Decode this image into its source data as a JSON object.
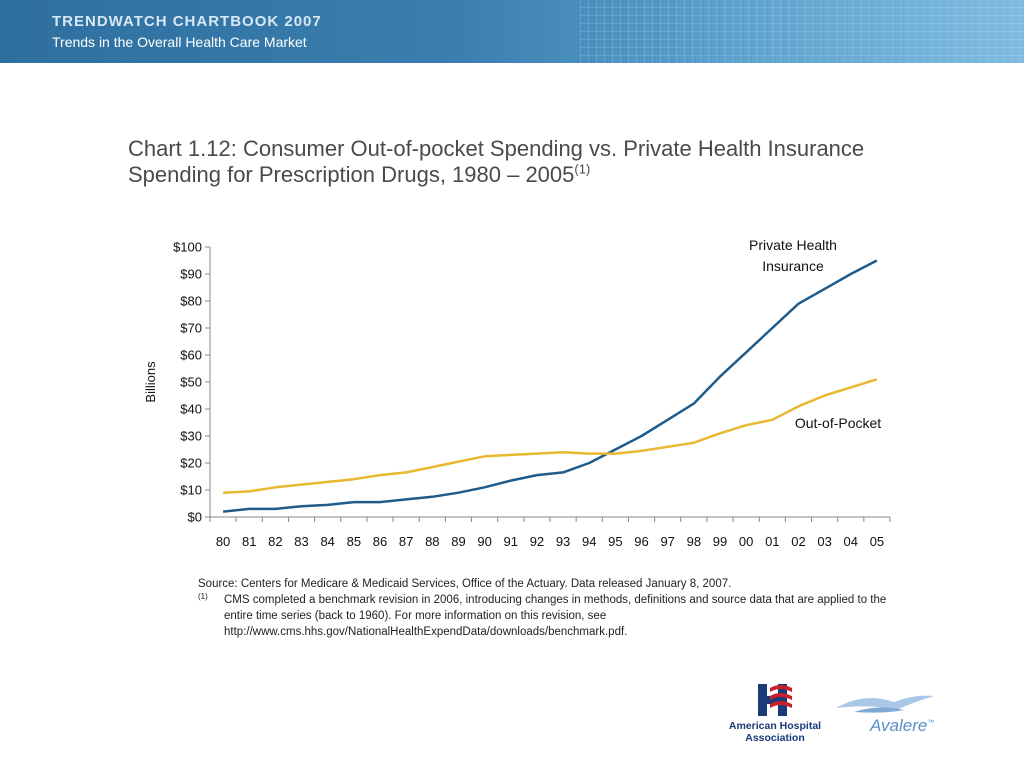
{
  "header": {
    "title": "TRENDWATCH CHARTBOOK 2007",
    "subtitle": "Trends in the Overall Health Care Market"
  },
  "title": {
    "text": "Chart 1.12: Consumer Out-of-pocket Spending vs. Private Health Insurance Spending for Prescription Drugs, 1980 – 2005",
    "superscript": "(1)"
  },
  "chart_data": {
    "type": "line",
    "ylabel": "Billions",
    "xlabel": "",
    "ylim": [
      0,
      100
    ],
    "yticks": [
      "$0",
      "$10",
      "$20",
      "$30",
      "$40",
      "$50",
      "$60",
      "$70",
      "$80",
      "$90",
      "$100"
    ],
    "categories": [
      "80",
      "81",
      "82",
      "83",
      "84",
      "85",
      "86",
      "87",
      "88",
      "89",
      "90",
      "91",
      "92",
      "93",
      "94",
      "95",
      "96",
      "97",
      "98",
      "99",
      "00",
      "01",
      "02",
      "03",
      "04",
      "05"
    ],
    "series": [
      {
        "name": "Private Health Insurance",
        "color": "#1f5c8b",
        "values": [
          2,
          3,
          3,
          4,
          4.5,
          5.5,
          5.5,
          6.5,
          7.5,
          9,
          11,
          13.5,
          15.5,
          16.5,
          20,
          25,
          30,
          36,
          42,
          52,
          61,
          70,
          79,
          84.5,
          90,
          95
        ]
      },
      {
        "name": "Out-of-Pocket",
        "color": "#e8b830",
        "values": [
          9,
          9.5,
          11,
          12,
          13,
          14,
          15.5,
          16.5,
          18.5,
          20.5,
          22.5,
          23,
          23.5,
          24,
          23.5,
          23.5,
          24.5,
          26,
          27.5,
          31,
          34,
          36,
          41,
          45,
          48,
          51
        ]
      }
    ],
    "series_labels": [
      {
        "line1": "Private Health",
        "line2": "Insurance"
      },
      {
        "line1": "Out-of-Pocket"
      }
    ]
  },
  "footnotes": {
    "source": "Source:  Centers for Medicare & Medicaid Services, Office of the Actuary.  Data released January 8, 2007.",
    "mark": "(1)",
    "note": "CMS completed a benchmark revision in 2006, introducing changes in methods, definitions and source data that are applied to the entire time series (back to 1960).  For more information on this revision, see http://www.cms.hhs.gov/NationalHealthExpendData/downloads/benchmark.pdf."
  },
  "logos": {
    "aha": {
      "line1": "American Hospital",
      "line2": "Association"
    },
    "avalere": "Avalere",
    "avalere_mark": "™"
  }
}
